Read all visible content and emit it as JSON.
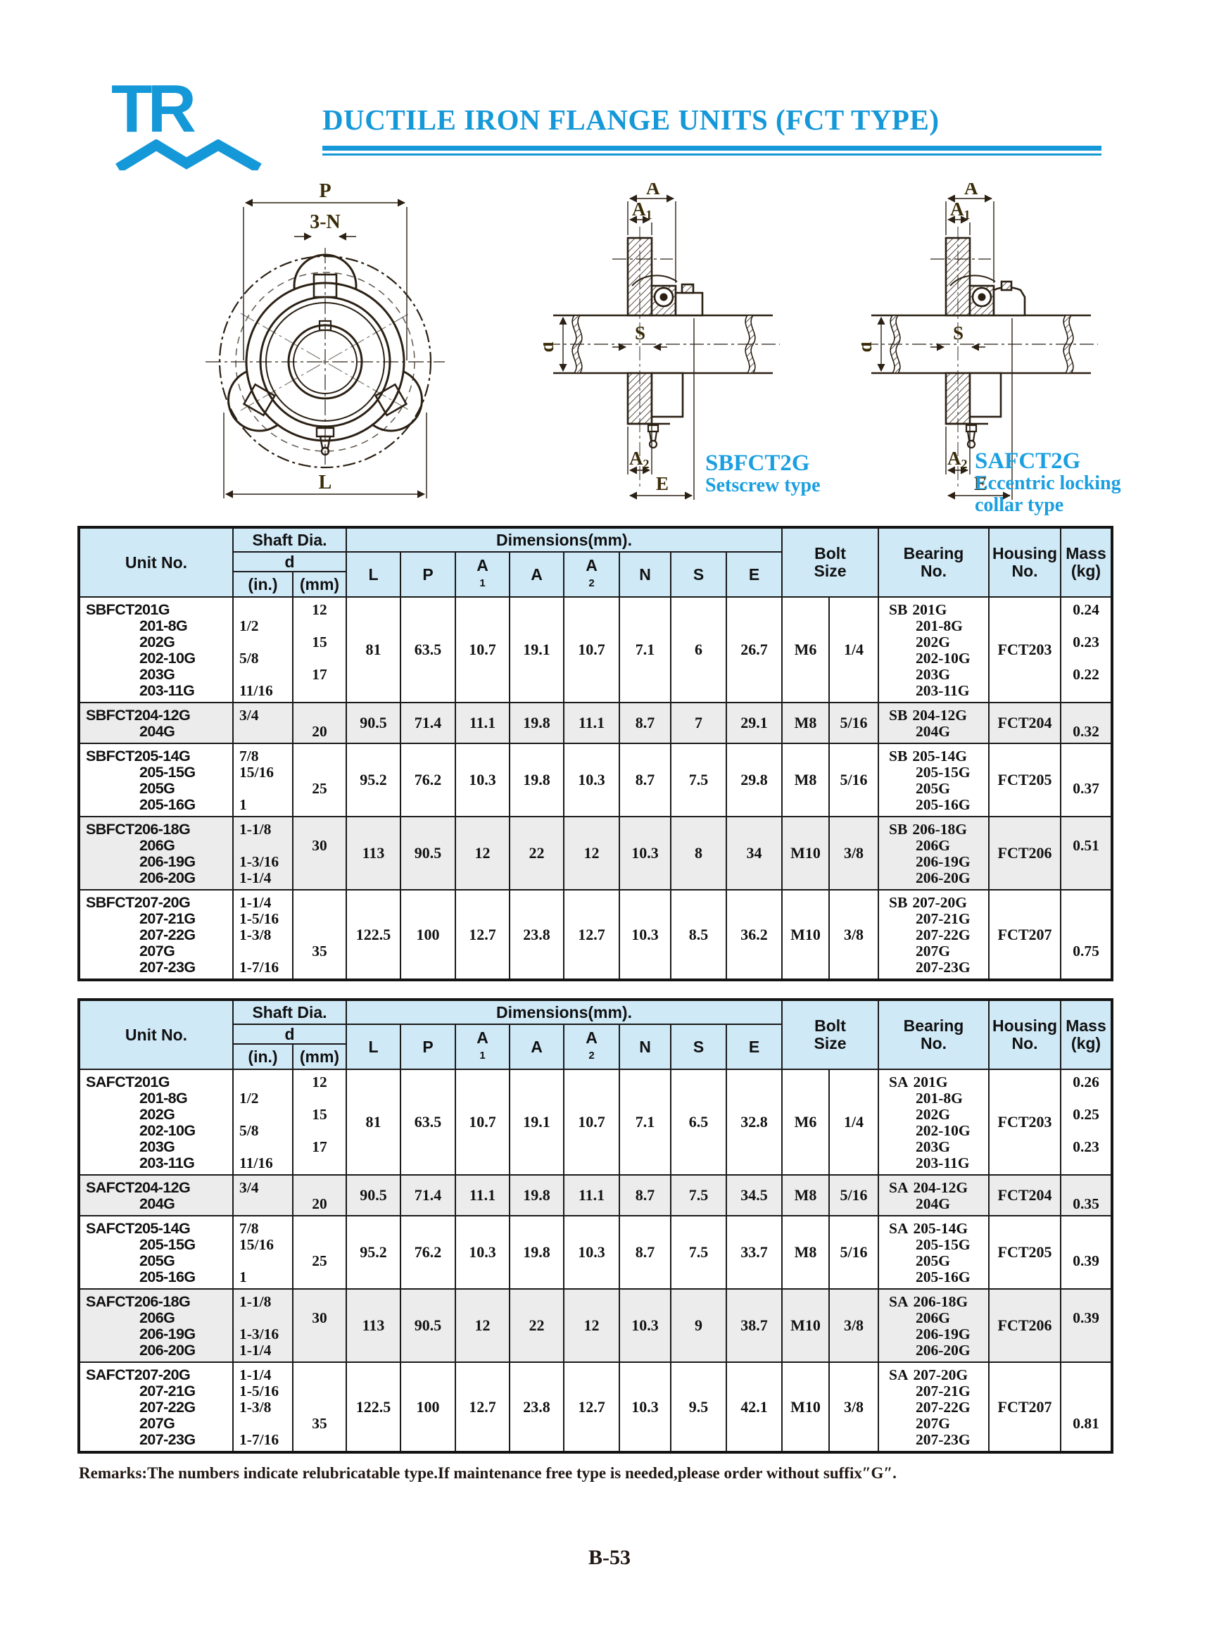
{
  "colors": {
    "accent": "#1598d8",
    "header_bg": "#cfe9f7",
    "shade_bg": "#ececec",
    "drawing_line": "#2b2014",
    "dim_label": "#3a2c08"
  },
  "header": {
    "logo": "TR",
    "title": "DUCTILE IRON FLANGE UNITS (FCT TYPE)"
  },
  "diagrams": {
    "front": {
      "p": "P",
      "n": "3-N",
      "l": "L"
    },
    "section": {
      "a": "A",
      "a1_base": "A",
      "a1_sub": "1",
      "d": "d",
      "s": "S",
      "a2_base": "A",
      "a2_sub": "2",
      "e": "E"
    },
    "types": [
      {
        "code": "SBFCT2G",
        "line1": "Setscrew type",
        "line2": ""
      },
      {
        "code": "SAFCT2G",
        "line1": "Eccentric locking",
        "line2": "collar type"
      }
    ]
  },
  "table_header": {
    "unit_no": "Unit No.",
    "shaft_dia": "Shaft Dia.",
    "d": "d",
    "in": "(in.)",
    "mm": "(mm)",
    "dimensions": "Dimensions(mm).",
    "dims": [
      "L",
      "P",
      "A1",
      "A",
      "A2",
      "N",
      "S",
      "E"
    ],
    "bolt": [
      "Bolt",
      "Size"
    ],
    "bearing": [
      "Bearing",
      "No."
    ],
    "housing": [
      "Housing",
      "No."
    ],
    "mass": [
      "Mass",
      "(kg)"
    ]
  },
  "sbfct_rows": [
    {
      "shade": false,
      "unit_prefix": "SBFCT",
      "unit_lines": [
        "201G",
        "201-8G",
        "202G",
        "202-10G",
        "203G",
        "203-11G"
      ],
      "in_lines": [
        "",
        "1/2",
        "",
        "5/8",
        "",
        "11/16"
      ],
      "mm_lines": [
        "12",
        "",
        "15",
        "",
        "17",
        ""
      ],
      "L": "81",
      "P": "63.5",
      "A1": "10.7",
      "A": "19.1",
      "A2": "10.7",
      "N": "7.1",
      "S": "6",
      "E": "26.7",
      "bolt_m": "M6",
      "bolt_in": "1/4",
      "bearing_prefix": "SB",
      "bearing_lines": [
        "201G",
        "201-8G",
        "202G",
        "202-10G",
        "203G",
        "203-11G"
      ],
      "housing": "FCT203",
      "mass_lines": [
        "0.24",
        "",
        "0.23",
        "",
        "0.22",
        ""
      ]
    },
    {
      "shade": true,
      "unit_prefix": "SBFCT",
      "unit_lines": [
        "204-12G",
        "204G"
      ],
      "in_lines": [
        "3/4",
        ""
      ],
      "mm_lines": [
        "",
        "20"
      ],
      "L": "90.5",
      "P": "71.4",
      "A1": "11.1",
      "A": "19.8",
      "A2": "11.1",
      "N": "8.7",
      "S": "7",
      "E": "29.1",
      "bolt_m": "M8",
      "bolt_in": "5/16",
      "bearing_prefix": "SB",
      "bearing_lines": [
        "204-12G",
        "204G"
      ],
      "housing": "FCT204",
      "mass_lines": [
        "",
        "0.32"
      ]
    },
    {
      "shade": false,
      "unit_prefix": "SBFCT",
      "unit_lines": [
        "205-14G",
        "205-15G",
        "205G",
        "205-16G"
      ],
      "in_lines": [
        "7/8",
        "15/16",
        "",
        "1"
      ],
      "mm_lines": [
        "",
        "",
        "25",
        ""
      ],
      "L": "95.2",
      "P": "76.2",
      "A1": "10.3",
      "A": "19.8",
      "A2": "10.3",
      "N": "8.7",
      "S": "7.5",
      "E": "29.8",
      "bolt_m": "M8",
      "bolt_in": "5/16",
      "bearing_prefix": "SB",
      "bearing_lines": [
        "205-14G",
        "205-15G",
        "205G",
        "205-16G"
      ],
      "housing": "FCT205",
      "mass_lines": [
        "",
        "",
        "0.37",
        ""
      ]
    },
    {
      "shade": true,
      "unit_prefix": "SBFCT",
      "unit_lines": [
        "206-18G",
        "206G",
        "206-19G",
        "206-20G"
      ],
      "in_lines": [
        "1-1/8",
        "",
        "1-3/16",
        "1-1/4"
      ],
      "mm_lines": [
        "",
        "30",
        "",
        ""
      ],
      "L": "113",
      "P": "90.5",
      "A1": "12",
      "A": "22",
      "A2": "12",
      "N": "10.3",
      "S": "8",
      "E": "34",
      "bolt_m": "M10",
      "bolt_in": "3/8",
      "bearing_prefix": "SB",
      "bearing_lines": [
        "206-18G",
        "206G",
        "206-19G",
        "206-20G"
      ],
      "housing": "FCT206",
      "mass_lines": [
        "",
        "0.51",
        "",
        ""
      ]
    },
    {
      "shade": false,
      "unit_prefix": "SBFCT",
      "unit_lines": [
        "207-20G",
        "207-21G",
        "207-22G",
        "207G",
        "207-23G"
      ],
      "in_lines": [
        "1-1/4",
        "1-5/16",
        "1-3/8",
        "",
        "1-7/16"
      ],
      "mm_lines": [
        "",
        "",
        "",
        "35",
        ""
      ],
      "L": "122.5",
      "P": "100",
      "A1": "12.7",
      "A": "23.8",
      "A2": "12.7",
      "N": "10.3",
      "S": "8.5",
      "E": "36.2",
      "bolt_m": "M10",
      "bolt_in": "3/8",
      "bearing_prefix": "SB",
      "bearing_lines": [
        "207-20G",
        "207-21G",
        "207-22G",
        "207G",
        "207-23G"
      ],
      "housing": "FCT207",
      "mass_lines": [
        "",
        "",
        "",
        "0.75",
        ""
      ]
    }
  ],
  "safct_rows": [
    {
      "shade": false,
      "unit_prefix": "SAFCT",
      "unit_lines": [
        "201G",
        "201-8G",
        "202G",
        "202-10G",
        "203G",
        "203-11G"
      ],
      "in_lines": [
        "",
        "1/2",
        "",
        "5/8",
        "",
        "11/16"
      ],
      "mm_lines": [
        "12",
        "",
        "15",
        "",
        "17",
        ""
      ],
      "L": "81",
      "P": "63.5",
      "A1": "10.7",
      "A": "19.1",
      "A2": "10.7",
      "N": "7.1",
      "S": "6.5",
      "E": "32.8",
      "bolt_m": "M6",
      "bolt_in": "1/4",
      "bearing_prefix": "SA",
      "bearing_lines": [
        "201G",
        "201-8G",
        "202G",
        "202-10G",
        "203G",
        "203-11G"
      ],
      "housing": "FCT203",
      "mass_lines": [
        "0.26",
        "",
        "0.25",
        "",
        "0.23",
        ""
      ]
    },
    {
      "shade": true,
      "unit_prefix": "SAFCT",
      "unit_lines": [
        "204-12G",
        "204G"
      ],
      "in_lines": [
        "3/4",
        ""
      ],
      "mm_lines": [
        "",
        "20"
      ],
      "L": "90.5",
      "P": "71.4",
      "A1": "11.1",
      "A": "19.8",
      "A2": "11.1",
      "N": "8.7",
      "S": "7.5",
      "E": "34.5",
      "bolt_m": "M8",
      "bolt_in": "5/16",
      "bearing_prefix": "SA",
      "bearing_lines": [
        "204-12G",
        "204G"
      ],
      "housing": "FCT204",
      "mass_lines": [
        "",
        "0.35"
      ]
    },
    {
      "shade": false,
      "unit_prefix": "SAFCT",
      "unit_lines": [
        "205-14G",
        "205-15G",
        "205G",
        "205-16G"
      ],
      "in_lines": [
        "7/8",
        "15/16",
        "",
        "1"
      ],
      "mm_lines": [
        "",
        "",
        "25",
        ""
      ],
      "L": "95.2",
      "P": "76.2",
      "A1": "10.3",
      "A": "19.8",
      "A2": "10.3",
      "N": "8.7",
      "S": "7.5",
      "E": "33.7",
      "bolt_m": "M8",
      "bolt_in": "5/16",
      "bearing_prefix": "SA",
      "bearing_lines": [
        "205-14G",
        "205-15G",
        "205G",
        "205-16G"
      ],
      "housing": "FCT205",
      "mass_lines": [
        "",
        "",
        "0.39",
        ""
      ]
    },
    {
      "shade": true,
      "unit_prefix": "SAFCT",
      "unit_lines": [
        "206-18G",
        "206G",
        "206-19G",
        "206-20G"
      ],
      "in_lines": [
        "1-1/8",
        "",
        "1-3/16",
        "1-1/4"
      ],
      "mm_lines": [
        "",
        "30",
        "",
        ""
      ],
      "L": "113",
      "P": "90.5",
      "A1": "12",
      "A": "22",
      "A2": "12",
      "N": "10.3",
      "S": "9",
      "E": "38.7",
      "bolt_m": "M10",
      "bolt_in": "3/8",
      "bearing_prefix": "SA",
      "bearing_lines": [
        "206-18G",
        "206G",
        "206-19G",
        "206-20G"
      ],
      "housing": "FCT206",
      "mass_lines": [
        "",
        "0.39",
        "",
        ""
      ]
    },
    {
      "shade": false,
      "unit_prefix": "SAFCT",
      "unit_lines": [
        "207-20G",
        "207-21G",
        "207-22G",
        "207G",
        "207-23G"
      ],
      "in_lines": [
        "1-1/4",
        "1-5/16",
        "1-3/8",
        "",
        "1-7/16"
      ],
      "mm_lines": [
        "",
        "",
        "",
        "35",
        ""
      ],
      "L": "122.5",
      "P": "100",
      "A1": "12.7",
      "A": "23.8",
      "A2": "12.7",
      "N": "10.3",
      "S": "9.5",
      "E": "42.1",
      "bolt_m": "M10",
      "bolt_in": "3/8",
      "bearing_prefix": "SA",
      "bearing_lines": [
        "207-20G",
        "207-21G",
        "207-22G",
        "207G",
        "207-23G"
      ],
      "housing": "FCT207",
      "mass_lines": [
        "",
        "",
        "",
        "0.81",
        ""
      ]
    }
  ],
  "footer": {
    "remarks": "Remarks:The numbers indicate relubricatable type.If maintenance free type is needed,please order without suffix″G″.",
    "page_number": "B-53"
  }
}
